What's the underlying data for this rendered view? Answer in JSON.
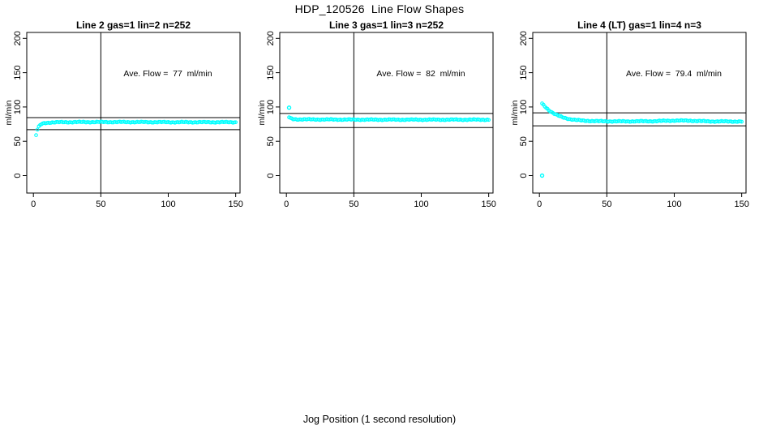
{
  "title": "HDP_120526  Line Flow Shapes",
  "xlabel": "Jog Position (1 second resolution)",
  "point_color": "#00FFFF",
  "axis_color": "#000000",
  "background_color": "#FFFFFF",
  "axes": {
    "x_ticks": [
      0,
      50,
      100,
      150
    ],
    "y_ticks": [
      0,
      50,
      100,
      150,
      200
    ],
    "x_range": [
      0,
      150
    ],
    "y_range": [
      0,
      200
    ],
    "grid": false
  },
  "chart_data": [
    {
      "type": "scatter",
      "title": "Line 2 gas=1 lin=2 n=252",
      "ylabel": "ml/min",
      "annotation": "Ave. Flow =  77  ml/min",
      "avg_flow": 77,
      "n": 252,
      "vline_x": 50,
      "ref_lines": [
        67,
        84.5
      ],
      "profile": [
        [
          2,
          59
        ],
        [
          3,
          67
        ],
        [
          4,
          71
        ],
        [
          5,
          73.5
        ],
        [
          6,
          75
        ],
        [
          8,
          76.5
        ],
        [
          12,
          77.3
        ],
        [
          20,
          77.8
        ],
        [
          40,
          78
        ],
        [
          70,
          78
        ],
        [
          100,
          77.8
        ],
        [
          150,
          77.8
        ]
      ],
      "outliers": []
    },
    {
      "type": "scatter",
      "title": "Line 3 gas=1 lin=3 n=252",
      "ylabel": "ml/min",
      "annotation": "Ave. Flow =  82  ml/min",
      "avg_flow": 82,
      "n": 252,
      "vline_x": 50,
      "ref_lines": [
        70,
        90.5
      ],
      "profile": [
        [
          2,
          85
        ],
        [
          3,
          83.5
        ],
        [
          5,
          82.3
        ],
        [
          8,
          82
        ],
        [
          20,
          81.8
        ],
        [
          60,
          81.5
        ],
        [
          150,
          81.5
        ]
      ],
      "outliers": [
        [
          2,
          99
        ]
      ]
    },
    {
      "type": "scatter",
      "title": "Line 4 (LT) gas=1 lin=4 n=3",
      "ylabel": "ml/min",
      "annotation": "Ave. Flow =  79.4  ml/min",
      "avg_flow": 79.4,
      "n": 3,
      "vline_x": 50,
      "ref_lines": [
        72.5,
        91.5
      ],
      "profile": [
        [
          2,
          105
        ],
        [
          3,
          103
        ],
        [
          5,
          99
        ],
        [
          7,
          95.5
        ],
        [
          9,
          92.5
        ],
        [
          12,
          89
        ],
        [
          15,
          86.5
        ],
        [
          18,
          84.5
        ],
        [
          22,
          82.5
        ],
        [
          27,
          81
        ],
        [
          33,
          80
        ],
        [
          45,
          79.2
        ],
        [
          60,
          79
        ],
        [
          85,
          79.3
        ],
        [
          100,
          80.2
        ],
        [
          112,
          80
        ],
        [
          125,
          79
        ],
        [
          150,
          78.8
        ]
      ],
      "outliers": [
        [
          2,
          0
        ]
      ]
    }
  ]
}
